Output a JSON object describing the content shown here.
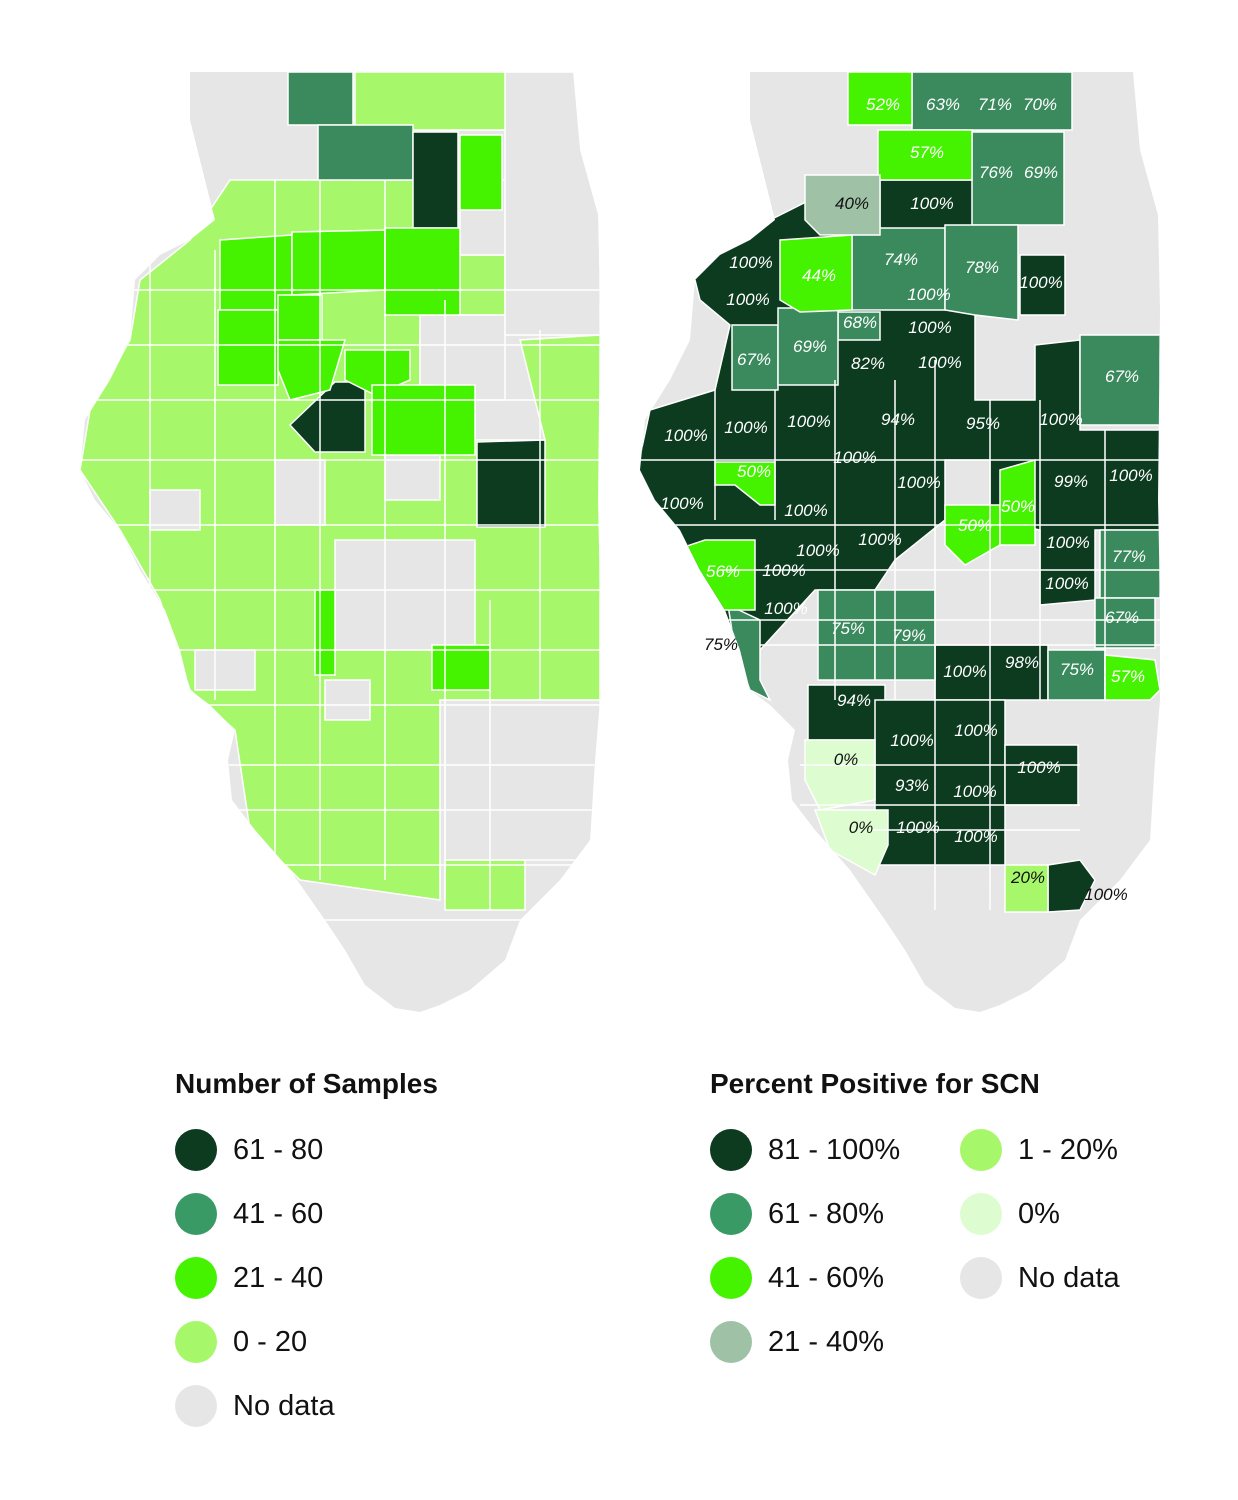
{
  "colors": {
    "darkest": "#0d3b1f",
    "medium": "#3b8a5e",
    "bright": "#45f300",
    "light": "#a6f86a",
    "pale": "#9fc2a6",
    "palest": "#ddfcd0",
    "nodata": "#e6e6e6"
  },
  "left_map": {
    "legend": {
      "title": "Number of Samples",
      "items": [
        {
          "label": "61 - 80",
          "color": "#0d3b1f"
        },
        {
          "label": "41 - 60",
          "color": "#3a9a66"
        },
        {
          "label": "21 - 40",
          "color": "#45f300"
        },
        {
          "label": "0 - 20",
          "color": "#a6f86a"
        },
        {
          "label": "No data",
          "color": "#e6e6e6"
        }
      ]
    }
  },
  "right_map": {
    "labels": [
      "52%",
      "63%",
      "71%",
      "70%",
      "57%",
      "76%",
      "69%",
      "40%",
      "100%",
      "74%",
      "78%",
      "100%",
      "100%",
      "44%",
      "100%",
      "100%",
      "68%",
      "100%",
      "67%",
      "69%",
      "82%",
      "100%",
      "67%",
      "100%",
      "100%",
      "100%",
      "94%",
      "95%",
      "100%",
      "100%",
      "50%",
      "100%",
      "100%",
      "99%",
      "100%",
      "100%",
      "100%",
      "50%",
      "50%",
      "100%",
      "56%",
      "100%",
      "100%",
      "77%",
      "100%",
      "100%",
      "67%",
      "75%",
      "75%",
      "79%",
      "100%",
      "98%",
      "75%",
      "57%",
      "94%",
      "0%",
      "100%",
      "100%",
      "100%",
      "93%",
      "100%",
      "0%",
      "100%",
      "100%",
      "20%",
      "100%"
    ],
    "legend": {
      "title": "Percent Positive for SCN",
      "columns": [
        [
          {
            "label": "81 - 100%",
            "color": "#0d3b1f"
          },
          {
            "label": "61 - 80%",
            "color": "#3a9a66"
          },
          {
            "label": "41 - 60%",
            "color": "#45f300"
          },
          {
            "label": "21 - 40%",
            "color": "#9fc2a6"
          }
        ],
        [
          {
            "label": "1 - 20%",
            "color": "#a6f86a"
          },
          {
            "label": "0%",
            "color": "#ddfcd0"
          },
          {
            "label": "No data",
            "color": "#e6e6e6"
          }
        ]
      ]
    }
  }
}
